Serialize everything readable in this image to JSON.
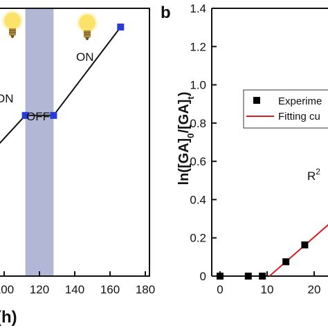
{
  "chart_data": [
    {
      "type": "line",
      "title": "",
      "xlabel": "(h)",
      "ylabel": "",
      "xlim": [
        85,
        180
      ],
      "x_ticks": [
        "100",
        "120",
        "140",
        "160",
        "180"
      ],
      "shaded_x_range": [
        112,
        128
      ],
      "annotations": [
        "ON",
        "OFF",
        "ON"
      ],
      "series": [
        {
          "points": [
            [
              84,
              0.4
            ],
            [
              112,
              0.6
            ],
            [
              128,
              0.6
            ],
            [
              166,
              0.93
            ]
          ],
          "color": "#2b3bd6"
        }
      ],
      "bulb_icon": "light-bulb-icon",
      "colors": {
        "marker": "#2b3bd6",
        "shade": "#b3b7d6",
        "line": "#111111"
      }
    },
    {
      "type": "scatter",
      "panel_label": "b",
      "title": "",
      "xlabel": "",
      "ylabel": "ln([GA]0/[GA]t)",
      "xlim": [
        -2,
        25
      ],
      "ylim": [
        0,
        1.4
      ],
      "x_ticks": [
        "0",
        "10",
        "20"
      ],
      "y_ticks": [
        "0",
        "0.2",
        "0.4",
        "0.6",
        "0.8",
        "1.0",
        "1.2",
        "1.4"
      ],
      "legend": {
        "position": "top-right",
        "entries": [
          "Experime",
          "Fitting cu"
        ]
      },
      "r2_label": "R",
      "r2_superscript": "2",
      "series": [
        {
          "name": "Experime",
          "marker": "square",
          "color": "#000000",
          "x": [
            0,
            6,
            9,
            14,
            18
          ],
          "y": [
            0,
            0,
            0,
            0.075,
            0.163
          ]
        },
        {
          "name": "Fitting cu",
          "line": true,
          "color": "#d42020",
          "x": [
            10.5,
            24
          ],
          "y": [
            0,
            0.29
          ]
        }
      ]
    }
  ]
}
